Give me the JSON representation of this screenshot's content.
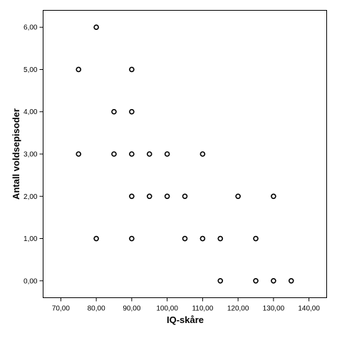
{
  "chart_data": {
    "type": "scatter",
    "xlabel": "IQ-skåre",
    "ylabel": "Antall voldsepisoder",
    "xlim": [
      65,
      145
    ],
    "ylim": [
      -0.4,
      6.4
    ],
    "x_ticks": [
      70,
      80,
      90,
      100,
      110,
      120,
      130,
      140
    ],
    "x_tick_labels": [
      "70,00",
      "80,00",
      "90,00",
      "100,00",
      "110,00",
      "120,00",
      "130,00",
      "140,00"
    ],
    "y_ticks": [
      0,
      1,
      2,
      3,
      4,
      5,
      6
    ],
    "y_tick_labels": [
      "0,00",
      "1,00",
      "2,00",
      "3,00",
      "4,00",
      "5,00",
      "6,00"
    ],
    "grid": false,
    "marker": "open-circle",
    "points": [
      {
        "x": 80,
        "y": 6
      },
      {
        "x": 75,
        "y": 5
      },
      {
        "x": 90,
        "y": 5
      },
      {
        "x": 85,
        "y": 4
      },
      {
        "x": 90,
        "y": 4
      },
      {
        "x": 75,
        "y": 3
      },
      {
        "x": 85,
        "y": 3
      },
      {
        "x": 90,
        "y": 3
      },
      {
        "x": 95,
        "y": 3
      },
      {
        "x": 100,
        "y": 3
      },
      {
        "x": 110,
        "y": 3
      },
      {
        "x": 90,
        "y": 2
      },
      {
        "x": 95,
        "y": 2
      },
      {
        "x": 100,
        "y": 2
      },
      {
        "x": 105,
        "y": 2
      },
      {
        "x": 120,
        "y": 2
      },
      {
        "x": 130,
        "y": 2
      },
      {
        "x": 80,
        "y": 1
      },
      {
        "x": 90,
        "y": 1
      },
      {
        "x": 105,
        "y": 1
      },
      {
        "x": 110,
        "y": 1
      },
      {
        "x": 115,
        "y": 1
      },
      {
        "x": 125,
        "y": 1
      },
      {
        "x": 115,
        "y": 0
      },
      {
        "x": 125,
        "y": 0
      },
      {
        "x": 130,
        "y": 0
      },
      {
        "x": 135,
        "y": 0
      }
    ]
  }
}
